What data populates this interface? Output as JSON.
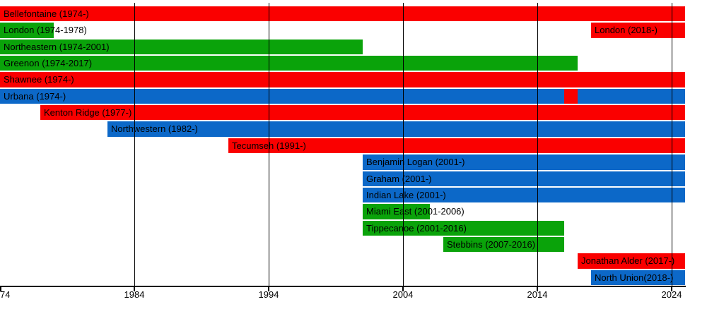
{
  "page": {
    "background": "#ffffff",
    "description_label": "Conference membership timeline"
  },
  "chart_data": {
    "type": "bar",
    "subtype": "gantt-timeline",
    "title": "",
    "xlabel": "",
    "ylabel": "",
    "grid": "vertical-decade-lines-over-bars",
    "legend": "none",
    "x_axis": {
      "min": 1974,
      "max": 2025,
      "gridline_years": [
        1984,
        1994,
        2004,
        2014,
        2024
      ],
      "ticks": [
        {
          "year": 1974,
          "label": "74",
          "clipped": true
        },
        {
          "year": 1984,
          "label": "1984",
          "clipped": false
        },
        {
          "year": 1994,
          "label": "1994",
          "clipped": false
        },
        {
          "year": 2004,
          "label": "2004",
          "clipped": false
        },
        {
          "year": 2014,
          "label": "2014",
          "clipped": false
        },
        {
          "year": 2024,
          "label": "2024",
          "clipped": false
        }
      ]
    },
    "colors": {
      "red": "#fa0000",
      "green": "#0aa30a",
      "blue": "#0c68c8",
      "text": "#000000",
      "grid": "#000000"
    },
    "rows": [
      {
        "name": "Bellefontaine",
        "segments": [
          {
            "label": "Bellefontaine (1974-)",
            "start": 1974,
            "end": 2025,
            "color": "red"
          }
        ]
      },
      {
        "name": "London",
        "segments": [
          {
            "label": "London (1974-1978)",
            "start": 1974,
            "end": 1978,
            "color": "green"
          },
          {
            "label": "London (2018-)",
            "start": 2018,
            "end": 2025,
            "color": "red"
          }
        ]
      },
      {
        "name": "Northeastern",
        "segments": [
          {
            "label": "Northeastern (1974-2001)",
            "start": 1974,
            "end": 2001,
            "color": "green"
          }
        ]
      },
      {
        "name": "Greenon",
        "segments": [
          {
            "label": "Greenon (1974-2017)",
            "start": 1974,
            "end": 2017,
            "color": "green"
          }
        ]
      },
      {
        "name": "Shawnee",
        "segments": [
          {
            "label": "Shawnee (1974-)",
            "start": 1974,
            "end": 2025,
            "color": "red"
          }
        ]
      },
      {
        "name": "Urbana",
        "segments": [
          {
            "label": "Urbana (1974-)",
            "start": 1974,
            "end": 2025,
            "color": "blue"
          },
          {
            "label": "",
            "start": 2016,
            "end": 2017,
            "color": "red"
          }
        ]
      },
      {
        "name": "Kenton Ridge",
        "segments": [
          {
            "label": "Kenton Ridge (1977-)",
            "start": 1977,
            "end": 2025,
            "color": "red"
          }
        ]
      },
      {
        "name": "Northwestern",
        "segments": [
          {
            "label": "Northwestern (1982-)",
            "start": 1982,
            "end": 2025,
            "color": "blue"
          }
        ]
      },
      {
        "name": "Tecumseh",
        "segments": [
          {
            "label": "Tecumseh (1991-)",
            "start": 1991,
            "end": 2025,
            "color": "red"
          }
        ]
      },
      {
        "name": "Benjamin Logan",
        "segments": [
          {
            "label": "Benjamin Logan (2001-)",
            "start": 2001,
            "end": 2025,
            "color": "blue"
          }
        ]
      },
      {
        "name": "Graham",
        "segments": [
          {
            "label": "Graham (2001-)",
            "start": 2001,
            "end": 2025,
            "color": "blue"
          }
        ]
      },
      {
        "name": "Indian Lake",
        "segments": [
          {
            "label": "Indian Lake (2001-)",
            "start": 2001,
            "end": 2025,
            "color": "blue"
          }
        ]
      },
      {
        "name": "Miami East",
        "segments": [
          {
            "label": "Miami East (2001-2006)",
            "start": 2001,
            "end": 2006,
            "color": "green"
          }
        ]
      },
      {
        "name": "Tippecanoe",
        "segments": [
          {
            "label": "Tippecanoe (2001-2016)",
            "start": 2001,
            "end": 2016,
            "color": "green"
          }
        ]
      },
      {
        "name": "Stebbins",
        "segments": [
          {
            "label": "Stebbins (2007-2016)",
            "start": 2007,
            "end": 2016,
            "color": "green"
          }
        ]
      },
      {
        "name": "Jonathan Alder",
        "segments": [
          {
            "label": "Jonathan Alder (2017-)",
            "start": 2017,
            "end": 2025,
            "color": "red"
          }
        ]
      },
      {
        "name": "North Union",
        "segments": [
          {
            "label": "North Union(2018-)",
            "start": 2018,
            "end": 2025,
            "color": "blue"
          }
        ]
      }
    ]
  }
}
